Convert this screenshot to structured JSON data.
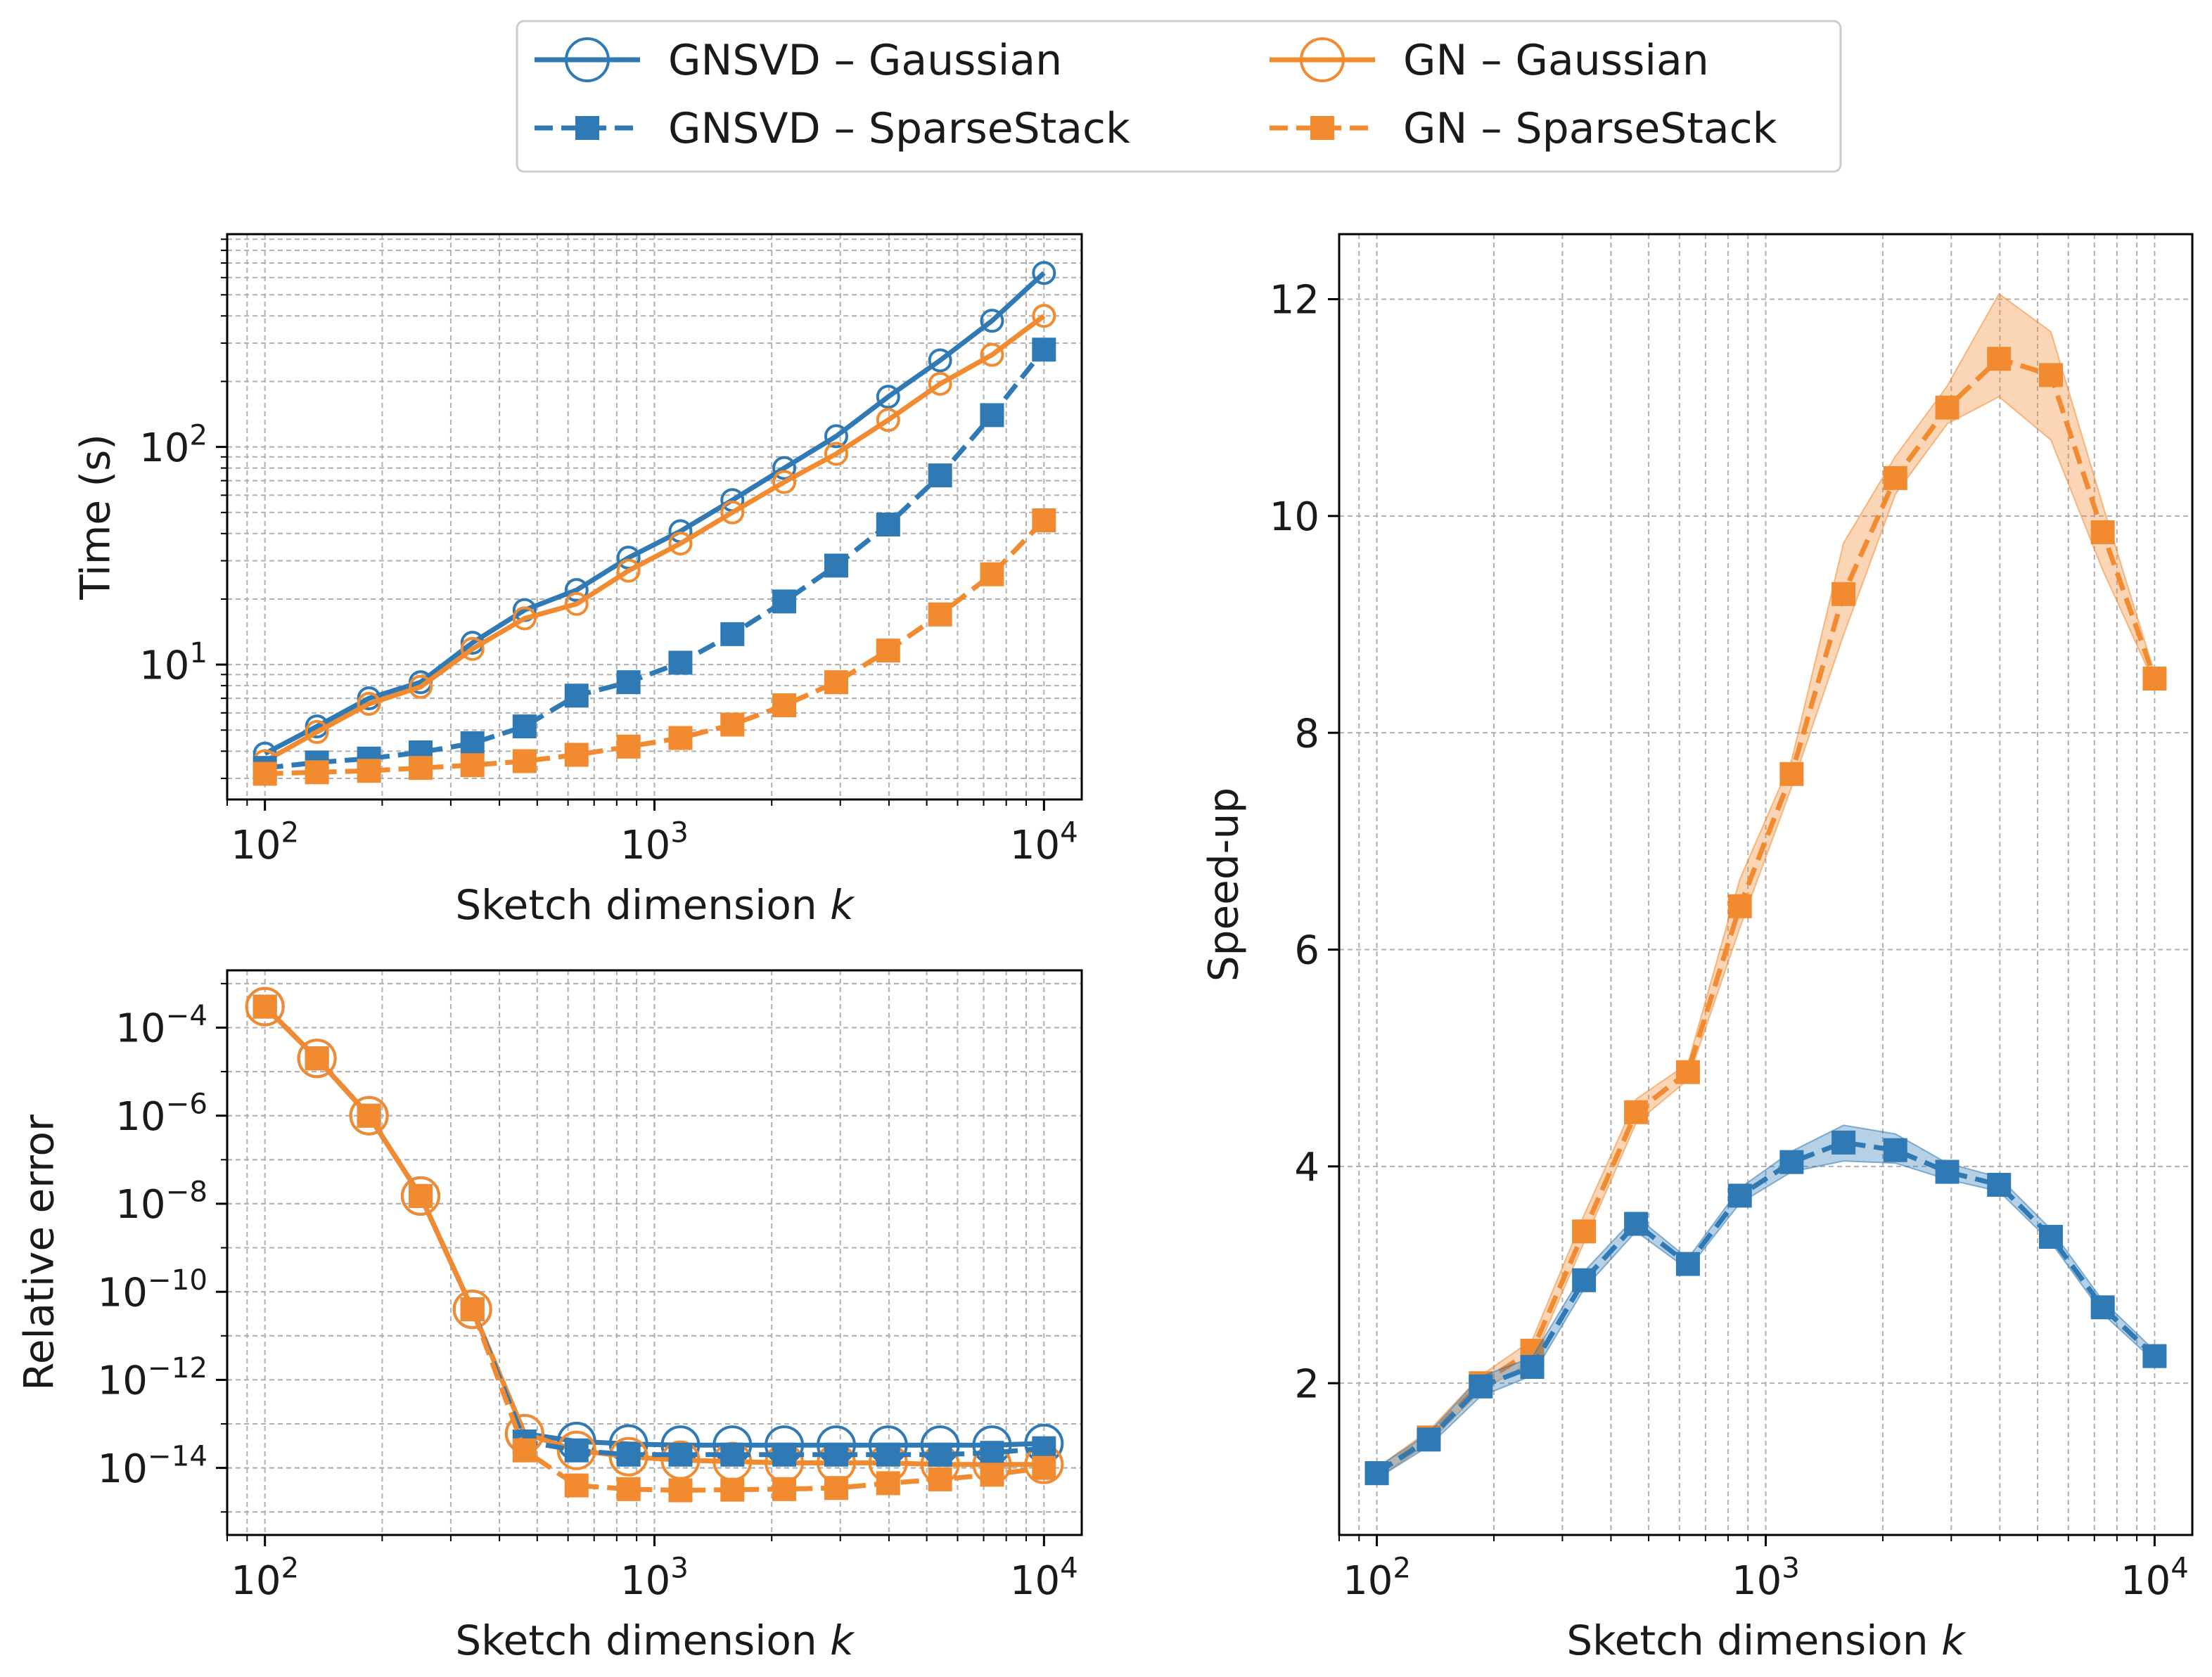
{
  "colors": {
    "gnsvd": "#2f7ab5",
    "gn": "#f28a30",
    "grid": "#b0b0b0",
    "axis": "#000000"
  },
  "legend": {
    "location": "top-center",
    "entries": [
      {
        "label": "GNSVD – Gaussian",
        "series": "gnsvd",
        "style": "solid",
        "marker": "open-circle"
      },
      {
        "label": "GN – Gaussian",
        "series": "gn",
        "style": "solid",
        "marker": "open-circle"
      },
      {
        "label": "GNSVD – SparseStack",
        "series": "gnsvd",
        "style": "dashed",
        "marker": "filled-square"
      },
      {
        "label": "GN – SparseStack",
        "series": "gn",
        "style": "dashed",
        "marker": "filled-square"
      }
    ]
  },
  "chart_data": [
    {
      "id": "time",
      "type": "line",
      "title": "",
      "xlabel": "Sketch dimension k",
      "ylabel": "Time (s)",
      "xscale": "log",
      "yscale": "log",
      "xlim": [
        80,
        12500
      ],
      "ylim": [
        2.4,
        950
      ],
      "xticks": [
        {
          "value": 100,
          "label": "10^2"
        },
        {
          "value": 1000,
          "label": "10^3"
        },
        {
          "value": 10000,
          "label": "10^4"
        }
      ],
      "yticks": [
        {
          "value": 10,
          "label": "10^1"
        },
        {
          "value": 100,
          "label": "10^2"
        }
      ],
      "grid": true,
      "x": [
        100,
        136,
        185,
        251,
        341,
        464,
        631,
        858,
        1166,
        1585,
        2154,
        2929,
        3981,
        5412,
        7356,
        10000
      ],
      "series": [
        {
          "name": "GNSVD – Gaussian",
          "color_key": "gnsvd",
          "style": "solid",
          "marker": "open-circle",
          "values": [
            3.9,
            5.2,
            7.0,
            8.3,
            12.6,
            17.8,
            22.0,
            31.0,
            41.0,
            57.0,
            80.0,
            112.0,
            170.0,
            250.0,
            380.0,
            630.0
          ]
        },
        {
          "name": "GN – Gaussian",
          "color_key": "gn",
          "style": "solid",
          "marker": "open-circle",
          "values": [
            3.6,
            4.9,
            6.6,
            7.9,
            11.8,
            16.3,
            19.0,
            27.0,
            36.0,
            50.0,
            69.0,
            93.0,
            133.0,
            195.0,
            265.0,
            400.0
          ]
        },
        {
          "name": "GNSVD – SparseStack",
          "color_key": "gnsvd",
          "style": "dashed",
          "marker": "filled-square",
          "values": [
            3.35,
            3.55,
            3.7,
            3.95,
            4.35,
            5.2,
            7.2,
            8.3,
            10.2,
            13.8,
            19.5,
            28.5,
            44.0,
            74.0,
            140.0,
            280.0
          ]
        },
        {
          "name": "GN – SparseStack",
          "color_key": "gn",
          "style": "dashed",
          "marker": "filled-square",
          "values": [
            3.15,
            3.2,
            3.25,
            3.35,
            3.45,
            3.6,
            3.85,
            4.2,
            4.6,
            5.3,
            6.5,
            8.3,
            11.6,
            17.0,
            26.0,
            46.0
          ]
        }
      ]
    },
    {
      "id": "error",
      "type": "line",
      "title": "",
      "xlabel": "Sketch dimension k",
      "ylabel": "Relative error",
      "xscale": "log",
      "yscale": "log",
      "xlim": [
        80,
        12500
      ],
      "ylim": [
        3e-16,
        0.002
      ],
      "xticks": [
        {
          "value": 100,
          "label": "10^2"
        },
        {
          "value": 1000,
          "label": "10^3"
        },
        {
          "value": 10000,
          "label": "10^4"
        }
      ],
      "yticks": [
        {
          "value": 0.0001,
          "label": "10^-4"
        },
        {
          "value": 1e-06,
          "label": "10^-6"
        },
        {
          "value": 1e-08,
          "label": "10^-8"
        },
        {
          "value": 1e-10,
          "label": "10^-10"
        },
        {
          "value": 1e-12,
          "label": "10^-12"
        },
        {
          "value": 1e-14,
          "label": "10^-14"
        }
      ],
      "grid": true,
      "x": [
        100,
        136,
        185,
        251,
        341,
        464,
        631,
        858,
        1166,
        1585,
        2154,
        2929,
        3981,
        5412,
        7356,
        10000
      ],
      "series": [
        {
          "name": "GNSVD – Gaussian",
          "color_key": "gnsvd",
          "style": "solid",
          "marker": "open-circle",
          "values": [
            0.0003,
            2e-05,
            1e-06,
            1.5e-08,
            4e-11,
            6e-14,
            4e-14,
            3.5e-14,
            3.3e-14,
            3.3e-14,
            3.3e-14,
            3.3e-14,
            3.3e-14,
            3.3e-14,
            3.3e-14,
            3.6e-14
          ]
        },
        {
          "name": "GN – Gaussian",
          "color_key": "gn",
          "style": "solid",
          "marker": "open-circle",
          "values": [
            0.0003,
            2e-05,
            1e-06,
            1.5e-08,
            4e-11,
            6e-14,
            2.5e-14,
            1.8e-14,
            1.5e-14,
            1.4e-14,
            1.3e-14,
            1.3e-14,
            1.3e-14,
            1.2e-14,
            1.2e-14,
            1.2e-14
          ]
        },
        {
          "name": "GNSVD – SparseStack",
          "color_key": "gnsvd",
          "style": "dashed",
          "marker": "filled-square",
          "values": [
            0.0003,
            2e-05,
            1e-06,
            1.5e-08,
            4e-11,
            4e-14,
            2.5e-14,
            2e-14,
            2e-14,
            2e-14,
            2e-14,
            2e-14,
            2e-14,
            2e-14,
            2.2e-14,
            2.8e-14
          ]
        },
        {
          "name": "GN – SparseStack",
          "color_key": "gn",
          "style": "dashed",
          "marker": "filled-square",
          "values": [
            0.0003,
            2e-05,
            1e-06,
            1.5e-08,
            4e-11,
            2.5e-14,
            4e-15,
            3.3e-15,
            3.1e-15,
            3.2e-15,
            3.3e-15,
            3.5e-15,
            4.5e-15,
            5.5e-15,
            7e-15,
            1e-14
          ]
        }
      ]
    },
    {
      "id": "speedup",
      "type": "line",
      "title": "",
      "xlabel": "Sketch dimension k",
      "ylabel": "Speed-up",
      "xscale": "log",
      "yscale": "linear",
      "xlim": [
        80,
        12500
      ],
      "ylim": [
        0.6,
        12.6
      ],
      "xticks": [
        {
          "value": 100,
          "label": "10^2"
        },
        {
          "value": 1000,
          "label": "10^3"
        },
        {
          "value": 10000,
          "label": "10^4"
        }
      ],
      "yticks": [
        {
          "value": 2,
          "label": "2"
        },
        {
          "value": 4,
          "label": "4"
        },
        {
          "value": 6,
          "label": "6"
        },
        {
          "value": 8,
          "label": "8"
        },
        {
          "value": 10,
          "label": "10"
        },
        {
          "value": 12,
          "label": "12"
        }
      ],
      "grid": true,
      "x": [
        100,
        136,
        185,
        251,
        341,
        464,
        631,
        858,
        1166,
        1585,
        2154,
        2929,
        3981,
        5412,
        7356,
        10000
      ],
      "series": [
        {
          "name": "GN – SparseStack",
          "color_key": "gn",
          "style": "dashed",
          "marker": "filled-square",
          "values": [
            1.17,
            1.5,
            2.0,
            2.3,
            3.4,
            4.5,
            4.87,
            6.4,
            7.62,
            9.28,
            10.35,
            11.0,
            11.45,
            11.3,
            9.85,
            8.5
          ],
          "band_low": [
            1.12,
            1.45,
            1.93,
            2.2,
            3.3,
            4.4,
            4.8,
            6.2,
            7.5,
            8.9,
            10.2,
            10.85,
            11.1,
            10.7,
            9.5,
            8.45
          ],
          "band_high": [
            1.22,
            1.56,
            2.07,
            2.4,
            3.55,
            4.62,
            4.95,
            6.65,
            7.75,
            9.75,
            10.55,
            11.2,
            12.05,
            11.7,
            10.1,
            8.55
          ]
        },
        {
          "name": "GNSVD – SparseStack",
          "color_key": "gnsvd",
          "style": "dashed",
          "marker": "filled-square",
          "values": [
            1.17,
            1.48,
            1.97,
            2.15,
            2.95,
            3.47,
            3.1,
            3.73,
            4.04,
            4.22,
            4.15,
            3.95,
            3.83,
            3.35,
            2.7,
            2.25
          ],
          "band_low": [
            1.12,
            1.42,
            1.88,
            2.07,
            2.87,
            3.4,
            3.05,
            3.66,
            3.95,
            4.05,
            4.03,
            3.88,
            3.77,
            3.3,
            2.64,
            2.2
          ],
          "band_high": [
            1.22,
            1.54,
            2.06,
            2.24,
            3.03,
            3.54,
            3.15,
            3.8,
            4.14,
            4.38,
            4.3,
            4.03,
            3.9,
            3.42,
            2.76,
            2.3
          ]
        }
      ]
    }
  ]
}
